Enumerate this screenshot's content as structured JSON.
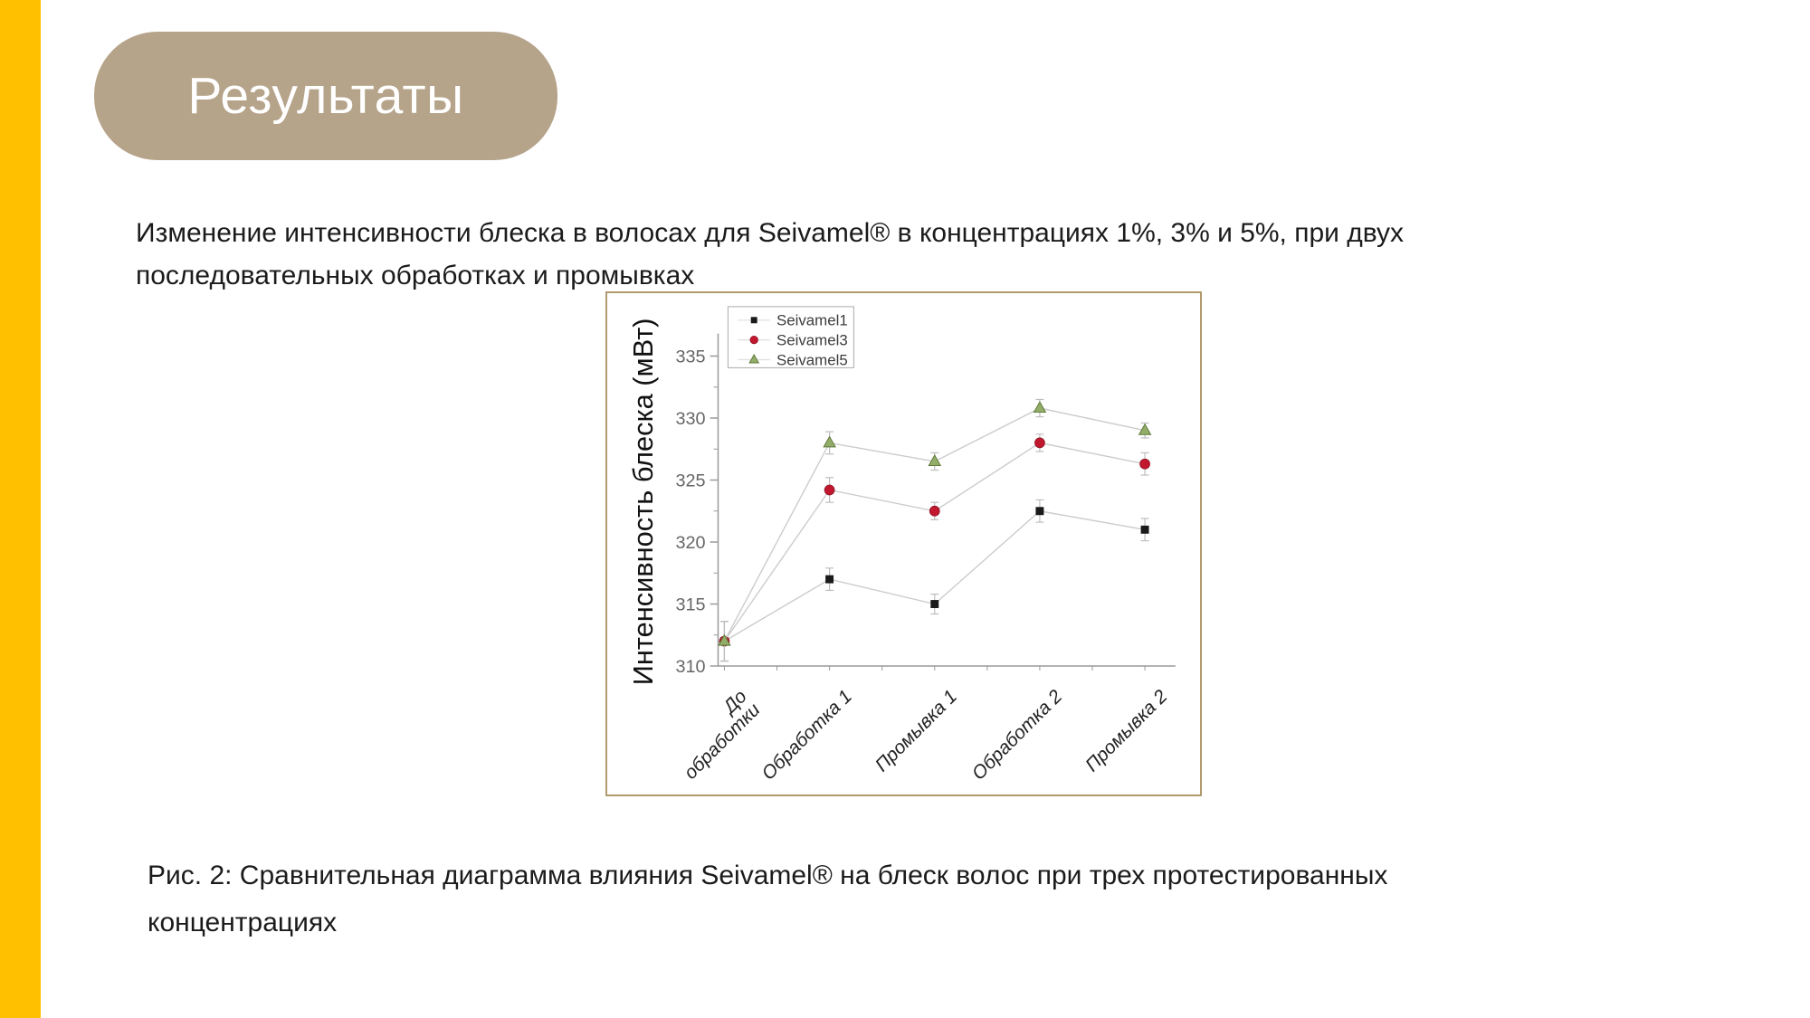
{
  "page": {
    "background": "#ffffff",
    "accent_bar_color": "#FFC000"
  },
  "title_badge": {
    "label": "Результаты",
    "bg_color": "#B5A38A",
    "text_color": "#ffffff"
  },
  "intro_text": "Изменение интенсивности блеска в волосах для Seivamel® в концентрациях 1%, 3% и 5%, при двух последовательных обработках и промывках",
  "caption": "Рис. 2: Сравнительная диаграмма влияния Seivamel® на блеск волос при трех протестированных концентрациях",
  "chart_data": {
    "type": "line",
    "title": "",
    "xlabel": "",
    "ylabel": "Интенсивность блеска (мВт)",
    "categories": [
      "До\nобработки",
      "Обработка 1",
      "Промывка 1",
      "Обработка 2",
      "Промывка 2"
    ],
    "ylim": [
      310,
      335
    ],
    "yticks": [
      310,
      315,
      320,
      325,
      330,
      335
    ],
    "grid": false,
    "legend_position": "top-inside",
    "frame_color": "#B09A6E",
    "axis_color": "#9a9a9a",
    "tick_label_color": "#666666",
    "connector_color": "#cccccc",
    "errorbar_color": "#bdbdbd",
    "series": [
      {
        "name": "Seivamel1",
        "marker": "square",
        "color": "#1a1a1a",
        "edge": "#1a1a1a",
        "values": [
          312,
          317,
          315,
          322.5,
          321
        ],
        "errors": [
          1.6,
          0.9,
          0.8,
          0.9,
          0.9
        ]
      },
      {
        "name": "Seivamel3",
        "marker": "circle",
        "color": "#C2182F",
        "edge": "#8f1122",
        "values": [
          312,
          324.2,
          322.5,
          328,
          326.3
        ],
        "errors": [
          1.6,
          1.0,
          0.7,
          0.7,
          0.9
        ]
      },
      {
        "name": "Seivamel5",
        "marker": "triangle",
        "color": "#93AD68",
        "edge": "#5F7A3A",
        "values": [
          312,
          328,
          326.5,
          330.8,
          329
        ],
        "errors": [
          1.6,
          0.9,
          0.7,
          0.7,
          0.6
        ]
      }
    ]
  }
}
